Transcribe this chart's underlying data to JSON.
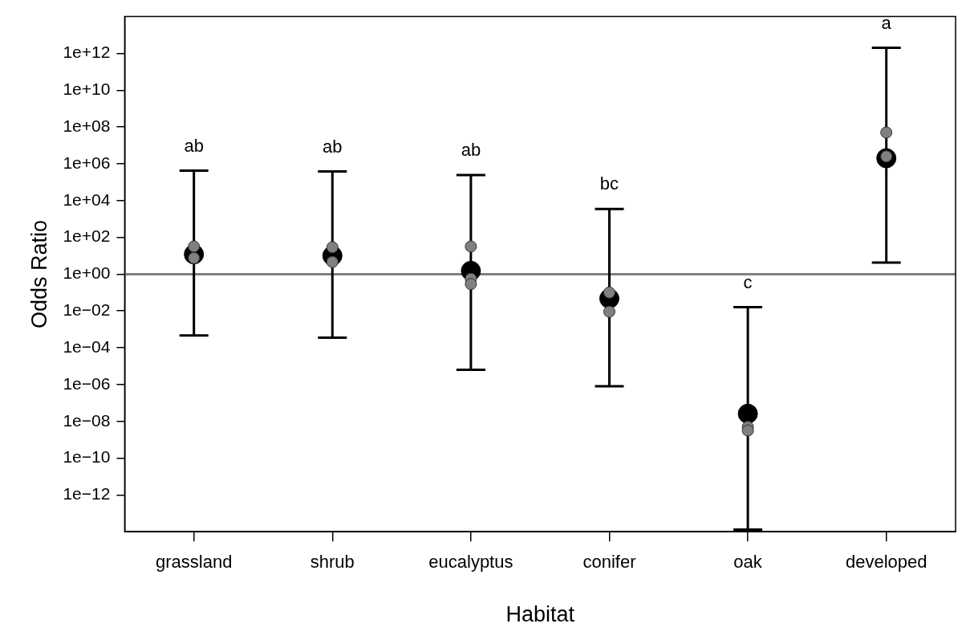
{
  "chart_data": {
    "type": "scatter",
    "xlabel": "Habitat",
    "ylabel": "Odds Ratio",
    "categories": [
      "grassland",
      "shrub",
      "eucalyptus",
      "conifer",
      "oak",
      "developed"
    ],
    "series": [
      {
        "color": "#000000",
        "values": [
          12,
          10,
          1.5,
          0.047,
          2.6e-08,
          2000000.0
        ],
        "errors": [
          [
            0.00047,
            420000.0
          ],
          [
            0.00035,
            380000.0
          ],
          [
            6.3e-06,
            240000.0
          ],
          [
            8e-07,
            3500.0
          ],
          [
            1.3e-14,
            0.016
          ],
          [
            4.2,
            2000000000000.0
          ]
        ]
      },
      {
        "color": "#808080",
        "x": [
          "grassland",
          "grassland",
          "shrub",
          "shrub",
          "eucalyptus",
          "eucalyptus",
          "eucalyptus",
          "conifer",
          "conifer",
          "oak",
          "oak",
          "developed",
          "developed"
        ],
        "values": [
          32,
          7.5,
          29,
          4.6,
          32,
          0.56,
          0.29,
          0.1,
          0.0091,
          5e-09,
          3.2e-09,
          50000000.0,
          2500000.0
        ]
      }
    ],
    "log": "y",
    "ylim": [
      1e-14,
      100000000000000.0
    ],
    "yticks": [
      {
        "value": 1000000000000.0,
        "label": "1e+12"
      },
      {
        "value": 10000000000.0,
        "label": "1e+10"
      },
      {
        "value": 100000000.0,
        "label": "1e+08"
      },
      {
        "value": 1000000.0,
        "label": "1e+06"
      },
      {
        "value": 10000.0,
        "label": "1e+04"
      },
      {
        "value": 100.0,
        "label": "1e+02"
      },
      {
        "value": 1,
        "label": "1e+00"
      },
      {
        "value": 0.01,
        "label": "1e−02"
      },
      {
        "value": 0.0001,
        "label": "1e−04"
      },
      {
        "value": 1e-06,
        "label": "1e−06"
      },
      {
        "value": 1e-08,
        "label": "1e−08"
      },
      {
        "value": 1e-10,
        "label": "1e−10"
      },
      {
        "value": 1e-12,
        "label": "1e−12"
      }
    ],
    "ref_lines": [
      {
        "axis": "y",
        "value": 1,
        "color": "#808080"
      }
    ],
    "annotations": [
      {
        "text": "ab",
        "x": "grassland",
        "y": 420000.0
      },
      {
        "text": "ab",
        "x": "shrub",
        "y": 380000.0
      },
      {
        "text": "ab",
        "x": "eucalyptus",
        "y": 240000.0
      },
      {
        "text": "bc",
        "x": "conifer",
        "y": 3500.0
      },
      {
        "text": "c",
        "x": "oak",
        "y": 0.016
      },
      {
        "text": "a",
        "x": "developed",
        "y": 2000000000000.0
      }
    ],
    "grid": false,
    "legend": false,
    "marker": "circle"
  }
}
